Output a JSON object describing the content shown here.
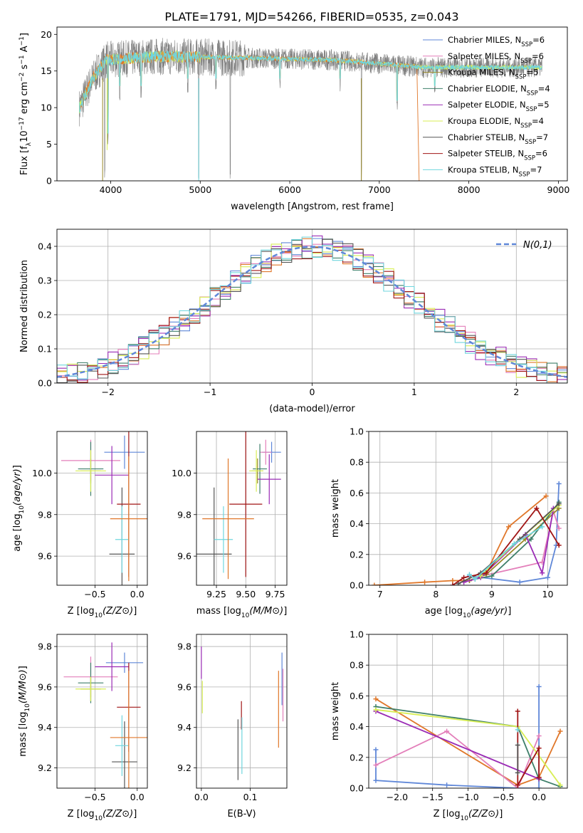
{
  "figure": {
    "title": "PLATE=1791, MJD=54266, FIBERID=0535, z=0.043"
  },
  "colors": {
    "chabrier_miles": "#5f87d8",
    "salpeter_miles": "#e37fba",
    "kroupa_miles": "#9a8a2a",
    "chabrier_elodie": "#3f7f6a",
    "salpeter_elodie": "#9a2bb5",
    "kroupa_elodie": "#d8ee55",
    "chabrier_stelib": "#555555",
    "salpeter_stelib": "#a01515",
    "kroupa_stelib": "#6fd6de",
    "gray_spectrum": "#7f7f7f",
    "orange": "#e0772a",
    "gaussian": "#5f87d8",
    "grid": "#b0b0b0"
  },
  "chart_data": [
    {
      "type": "line",
      "id": "spectrum",
      "xlabel": "wavelength [Angstrom, rest frame]",
      "ylabel": "Flux [f_λ10^-17 erg cm^-2 s^-1 A^-1]",
      "xlim": [
        3400,
        9100
      ],
      "ylim": [
        0,
        21
      ],
      "xticks": [
        4000,
        5000,
        6000,
        7000,
        8000,
        9000
      ],
      "yticks": [
        0,
        5,
        10,
        15,
        20
      ],
      "grid": false,
      "legend_position": "top-right",
      "legend": [
        {
          "base": "Chabrier MILES, N",
          "sub": "SSP",
          "tail": "=6",
          "color_key": "chabrier_miles"
        },
        {
          "base": "Salpeter MILES, N",
          "sub": "SSP",
          "tail": "=6",
          "color_key": "salpeter_miles"
        },
        {
          "base": "Kroupa MILES, N",
          "sub": "SSP",
          "tail": "=5",
          "color_key": "kroupa_miles"
        },
        {
          "base": "Chabrier ELODIE, N",
          "sub": "SSP",
          "tail": "=4",
          "color_key": "chabrier_elodie"
        },
        {
          "base": "Salpeter ELODIE, N",
          "sub": "SSP",
          "tail": "=5",
          "color_key": "salpeter_elodie"
        },
        {
          "base": "Kroupa ELODIE, N",
          "sub": "SSP",
          "tail": "=4",
          "color_key": "kroupa_elodie"
        },
        {
          "base": "Chabrier STELIB, N",
          "sub": "SSP",
          "tail": "=7",
          "color_key": "chabrier_stelib"
        },
        {
          "base": "Salpeter STELIB, N",
          "sub": "SSP",
          "tail": "=6",
          "color_key": "salpeter_stelib"
        },
        {
          "base": "Kroupa STELIB, N",
          "sub": "SSP",
          "tail": "=7",
          "color_key": "kroupa_stelib"
        }
      ],
      "spectrum": {
        "x_start": 3650,
        "x_end": 8820,
        "approx_continuum": [
          [
            3650,
            10
          ],
          [
            3800,
            14
          ],
          [
            3950,
            16.5
          ],
          [
            4500,
            17
          ],
          [
            5500,
            16.8
          ],
          [
            6500,
            16.5
          ],
          [
            7500,
            15.5
          ],
          [
            8000,
            15.5
          ],
          [
            8820,
            15.5
          ]
        ],
        "approx_absorption_lines": [
          [
            3934,
            0
          ],
          [
            3969,
            4.5
          ],
          [
            4101,
            11
          ],
          [
            4340,
            11
          ],
          [
            4861,
            12
          ],
          [
            4983,
            0
          ],
          [
            5175,
            12
          ],
          [
            5335,
            0
          ],
          [
            5890,
            12
          ],
          [
            6563,
            12
          ],
          [
            6800,
            0
          ],
          [
            7200,
            9
          ],
          [
            7620,
            11
          ]
        ],
        "orange_drop_at": 7420
      }
    },
    {
      "type": "histogram",
      "id": "residuals",
      "xlabel": "(data-model)/error",
      "ylabel": "Normed distribution",
      "xlim": [
        -2.5,
        2.5
      ],
      "ylim": [
        0,
        0.45
      ],
      "xticks": [
        -2,
        -1,
        0,
        1,
        2
      ],
      "yticks": [
        0,
        0.1,
        0.2,
        0.3,
        0.4
      ],
      "grid": true,
      "bin_width": 0.1,
      "legend_label": "N(0,1)",
      "gaussian": {
        "mean": 0,
        "sigma": 1
      }
    },
    {
      "type": "scatter",
      "id": "z_vs_age",
      "xlabel": "Z [log10(Z/Z⊙)]",
      "ylabel": "age  [log10(age/yr)]",
      "xlim": [
        -0.95,
        0.12
      ],
      "ylim": [
        9.46,
        10.2
      ],
      "xticks": [
        -0.5,
        0.0
      ],
      "yticks": [
        9.6,
        9.8,
        10.0
      ],
      "grid": true,
      "points": [
        {
          "x": -0.15,
          "xerr": 0.24,
          "y": 10.1,
          "yerr": 0.08,
          "color_key": "chabrier_miles"
        },
        {
          "x": -0.55,
          "xerr": 0.35,
          "y": 10.06,
          "yerr": 0.1,
          "color_key": "salpeter_miles"
        },
        {
          "x": -0.55,
          "xerr": 0.12,
          "y": 10.01,
          "yerr": 0.06,
          "color_key": "kroupa_miles"
        },
        {
          "x": -0.55,
          "xerr": 0.15,
          "y": 10.02,
          "yerr": 0.13,
          "color_key": "chabrier_elodie"
        },
        {
          "x": -0.3,
          "xerr": 0.2,
          "y": 9.99,
          "yerr": 0.14,
          "color_key": "salpeter_elodie"
        },
        {
          "x": -0.55,
          "xerr": 0.18,
          "y": 10.01,
          "yerr": 0.1,
          "color_key": "kroupa_elodie"
        },
        {
          "x": -0.18,
          "xerr": 0.15,
          "y": 9.61,
          "yerr": 0.32,
          "color_key": "chabrier_stelib"
        },
        {
          "x": -0.1,
          "xerr": 0.14,
          "y": 9.85,
          "yerr": 0.35,
          "color_key": "salpeter_stelib"
        },
        {
          "x": -0.18,
          "xerr": 0.08,
          "y": 9.68,
          "yerr": 0.16,
          "color_key": "kroupa_stelib"
        },
        {
          "x": -0.1,
          "xerr": 0.22,
          "y": 9.78,
          "yerr": 0.3,
          "color_key": "orange"
        }
      ]
    },
    {
      "type": "scatter",
      "id": "mass_vs_age",
      "xlabel": "mass [log10(M/M⊙)]",
      "ylabel": "",
      "xlim": [
        9.08,
        9.85
      ],
      "ylim": [
        9.46,
        10.2
      ],
      "xticks": [
        9.25,
        9.5,
        9.75
      ],
      "yticks": [
        9.6,
        9.8,
        10.0
      ],
      "grid": true,
      "points": [
        {
          "x": 9.72,
          "xerr": 0.08,
          "y": 10.1,
          "yerr": 0.05,
          "color_key": "chabrier_miles"
        },
        {
          "x": 9.67,
          "xerr": 0.05,
          "y": 10.1,
          "yerr": 0.06,
          "color_key": "salpeter_miles"
        },
        {
          "x": 9.6,
          "xerr": 0.05,
          "y": 10.01,
          "yerr": 0.06,
          "color_key": "kroupa_miles"
        },
        {
          "x": 9.62,
          "xerr": 0.06,
          "y": 10.02,
          "yerr": 0.12,
          "color_key": "chabrier_elodie"
        },
        {
          "x": 9.7,
          "xerr": 0.1,
          "y": 9.97,
          "yerr": 0.12,
          "color_key": "salpeter_elodie"
        },
        {
          "x": 9.59,
          "xerr": 0.06,
          "y": 10.01,
          "yerr": 0.1,
          "color_key": "kroupa_elodie"
        },
        {
          "x": 9.23,
          "xerr": 0.15,
          "y": 9.61,
          "yerr": 0.32,
          "color_key": "chabrier_stelib"
        },
        {
          "x": 9.5,
          "xerr": 0.14,
          "y": 9.85,
          "yerr": 0.35,
          "color_key": "salpeter_stelib"
        },
        {
          "x": 9.31,
          "xerr": 0.08,
          "y": 9.68,
          "yerr": 0.16,
          "color_key": "kroupa_stelib"
        },
        {
          "x": 9.35,
          "xerr": 0.22,
          "y": 9.78,
          "yerr": 0.29,
          "color_key": "orange"
        }
      ]
    },
    {
      "type": "line",
      "id": "age_vs_weight",
      "xlabel": "age  [log10(age/yr)]",
      "ylabel": "mass weight",
      "xlim": [
        6.8,
        10.35
      ],
      "ylim": [
        0,
        1.0
      ],
      "xticks": [
        7,
        8,
        9,
        10
      ],
      "yticks": [
        0.0,
        0.2,
        0.4,
        0.6,
        0.8,
        1.0
      ],
      "grid": true,
      "series": [
        {
          "color_key": "orange",
          "x": [
            6.9,
            7.8,
            8.3,
            8.6,
            8.9,
            9.3,
            9.97
          ],
          "y": [
            0.0,
            0.02,
            0.03,
            0.03,
            0.08,
            0.38,
            0.58
          ]
        },
        {
          "color_key": "chabrier_miles",
          "x": [
            8.6,
            9.5,
            10.0,
            10.15,
            10.2
          ],
          "y": [
            0.06,
            0.02,
            0.05,
            0.26,
            0.66
          ]
        },
        {
          "color_key": "salpeter_miles",
          "x": [
            8.7,
            9.9,
            10.1,
            10.2
          ],
          "y": [
            0.05,
            0.15,
            0.48,
            0.37
          ]
        },
        {
          "color_key": "kroupa_miles",
          "x": [
            8.6,
            8.9,
            9.6,
            10.2
          ],
          "y": [
            0.03,
            0.07,
            0.3,
            0.5
          ]
        },
        {
          "color_key": "chabrier_elodie",
          "x": [
            8.7,
            9.0,
            9.7,
            10.2
          ],
          "y": [
            0.04,
            0.06,
            0.3,
            0.54
          ]
        },
        {
          "color_key": "salpeter_elodie",
          "x": [
            8.5,
            8.8,
            9.6,
            9.9,
            10.1
          ],
          "y": [
            0.02,
            0.05,
            0.33,
            0.08,
            0.5
          ]
        },
        {
          "color_key": "kroupa_elodie",
          "x": [
            8.8,
            9.5,
            10.2
          ],
          "y": [
            0.06,
            0.3,
            0.52
          ]
        },
        {
          "color_key": "chabrier_stelib",
          "x": [
            8.4,
            8.8,
            9.5,
            10.2
          ],
          "y": [
            0.01,
            0.08,
            0.3,
            0.53
          ]
        },
        {
          "color_key": "salpeter_stelib",
          "x": [
            8.3,
            8.5,
            8.9,
            9.8,
            10.2
          ],
          "y": [
            0.0,
            0.05,
            0.08,
            0.5,
            0.26
          ]
        },
        {
          "color_key": "kroupa_stelib",
          "x": [
            8.6,
            8.7,
            9.4,
            9.9
          ],
          "y": [
            0.07,
            0.04,
            0.27,
            0.38
          ]
        }
      ]
    },
    {
      "type": "scatter",
      "id": "z_vs_mass",
      "xlabel": "Z [log10(Z/Z⊙)]",
      "ylabel": "mass [log10(M/M⊙)]",
      "xlim": [
        -0.95,
        0.12
      ],
      "ylim": [
        9.1,
        9.86
      ],
      "xticks": [
        -0.5,
        0.0
      ],
      "yticks": [
        9.2,
        9.4,
        9.6,
        9.8
      ],
      "grid": true,
      "points": [
        {
          "x": -0.15,
          "xerr": 0.22,
          "y": 9.72,
          "yerr": 0.05,
          "color_key": "chabrier_miles"
        },
        {
          "x": -0.55,
          "xerr": 0.32,
          "y": 9.65,
          "yerr": 0.1,
          "color_key": "salpeter_miles"
        },
        {
          "x": -0.55,
          "xerr": 0.12,
          "y": 9.59,
          "yerr": 0.06,
          "color_key": "kroupa_miles"
        },
        {
          "x": -0.55,
          "xerr": 0.15,
          "y": 9.62,
          "yerr": 0.1,
          "color_key": "chabrier_elodie"
        },
        {
          "x": -0.3,
          "xerr": 0.2,
          "y": 9.7,
          "yerr": 0.12,
          "color_key": "salpeter_elodie"
        },
        {
          "x": -0.55,
          "xerr": 0.18,
          "y": 9.59,
          "yerr": 0.06,
          "color_key": "kroupa_elodie"
        },
        {
          "x": -0.15,
          "xerr": 0.15,
          "y": 9.23,
          "yerr": 0.2,
          "color_key": "chabrier_stelib"
        },
        {
          "x": -0.1,
          "xerr": 0.14,
          "y": 9.5,
          "yerr": 0.22,
          "color_key": "salpeter_stelib"
        },
        {
          "x": -0.18,
          "xerr": 0.08,
          "y": 9.31,
          "yerr": 0.15,
          "color_key": "kroupa_stelib"
        },
        {
          "x": -0.1,
          "xerr": 0.22,
          "y": 9.35,
          "yerr": 0.33,
          "color_key": "orange"
        }
      ]
    },
    {
      "type": "scatter",
      "id": "ebv_vs_mass",
      "xlabel": "E(B-V)",
      "ylabel": "",
      "xlim": [
        -0.01,
        0.175
      ],
      "ylim": [
        9.1,
        9.86
      ],
      "xticks": [
        0.0,
        0.1
      ],
      "yticks": [
        9.2,
        9.4,
        9.6,
        9.8
      ],
      "grid": true,
      "points": [
        {
          "x": 0.165,
          "yerr": 0.13,
          "y": 9.64,
          "color_key": "chabrier_miles"
        },
        {
          "x": 0.167,
          "yerr": 0.13,
          "y": 9.56,
          "color_key": "salpeter_miles"
        },
        {
          "x": 0.0,
          "yerr": 0.08,
          "y": 9.72,
          "color_key": "salpeter_elodie"
        },
        {
          "x": 0.002,
          "yerr": 0.08,
          "y": 9.55,
          "color_key": "kroupa_elodie"
        },
        {
          "x": 0.075,
          "yerr": 0.15,
          "y": 9.29,
          "color_key": "chabrier_stelib"
        },
        {
          "x": 0.082,
          "yerr": 0.07,
          "y": 9.46,
          "color_key": "salpeter_stelib"
        },
        {
          "x": 0.083,
          "yerr": 0.14,
          "y": 9.31,
          "color_key": "kroupa_stelib"
        },
        {
          "x": 0.158,
          "yerr": 0.19,
          "y": 9.49,
          "color_key": "orange"
        }
      ]
    },
    {
      "type": "line",
      "id": "z_vs_weight",
      "xlabel": "Z [log10(Z/Z⊙)]",
      "ylabel": "mass weight",
      "xlim": [
        -2.4,
        0.4
      ],
      "ylim": [
        0,
        1.0
      ],
      "xticks": [
        -2.0,
        -1.5,
        -1.0,
        -0.5,
        0.0
      ],
      "yticks": [
        0.0,
        0.2,
        0.4,
        0.6,
        0.8,
        1.0
      ],
      "grid": true,
      "series": [
        {
          "color_key": "orange",
          "x": [
            -2.3,
            -0.3,
            0.0,
            0.3
          ],
          "y": [
            0.58,
            0.02,
            0.07,
            0.37
          ]
        },
        {
          "color_key": "chabrier_miles",
          "x": [
            -2.3,
            -2.3,
            -1.3,
            -0.3,
            0.0,
            0.0
          ],
          "y": [
            0.25,
            0.05,
            0.02,
            0.0,
            0.0,
            0.66
          ]
        },
        {
          "color_key": "salpeter_miles",
          "x": [
            -2.3,
            -1.3,
            -0.3,
            0.0
          ],
          "y": [
            0.15,
            0.37,
            0.0,
            0.34
          ]
        },
        {
          "color_key": "chabrier_elodie",
          "x": [
            -2.3,
            -0.3,
            0.0,
            0.3
          ],
          "y": [
            0.53,
            0.4,
            0.06,
            0.01
          ]
        },
        {
          "color_key": "salpeter_elodie",
          "x": [
            -2.3,
            0.0
          ],
          "y": [
            0.5,
            0.06
          ]
        },
        {
          "color_key": "kroupa_elodie",
          "x": [
            -2.3,
            -0.3,
            0.3
          ],
          "y": [
            0.51,
            0.4,
            0.02
          ]
        },
        {
          "color_key": "salpeter_stelib",
          "x": [
            -0.3,
            -0.3,
            0.0,
            0.0
          ],
          "y": [
            0.5,
            0.02,
            0.26,
            0.07
          ]
        },
        {
          "color_key": "chabrier_stelib",
          "x": [
            -0.3,
            -0.3
          ],
          "y": [
            0.28,
            0.1
          ]
        },
        {
          "color_key": "kroupa_stelib",
          "x": [
            -0.3
          ],
          "y": [
            0.38
          ]
        }
      ]
    }
  ]
}
